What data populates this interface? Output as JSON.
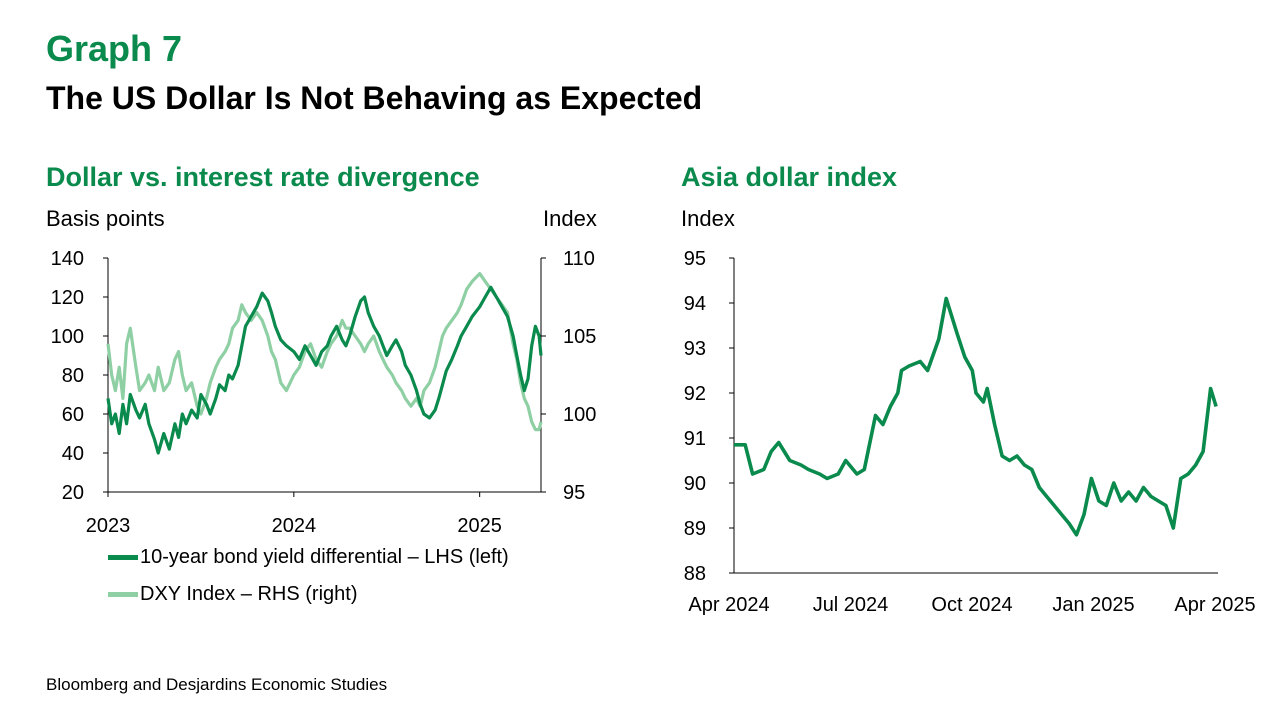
{
  "header": {
    "graph_number": "Graph 7",
    "title": "The US Dollar Is Not Behaving as Expected"
  },
  "source": "Bloomberg and Desjardins Economic Studies",
  "colors": {
    "dark_green": "#0a8a4c",
    "light_green": "#8fcfa4",
    "axis": "#000000"
  },
  "chart_data": [
    {
      "type": "line",
      "title": "Dollar vs. interest rate divergence",
      "ylabel_left": "Basis points",
      "ylabel_right": "Index",
      "x_ticks": [
        "2023",
        "2024",
        "2025"
      ],
      "x_range": [
        2023.0,
        2025.33
      ],
      "ylim_left": [
        20,
        140
      ],
      "ylim_right": [
        95,
        110
      ],
      "yticks_left": [
        20,
        40,
        60,
        80,
        100,
        120,
        140
      ],
      "yticks_right": [
        95,
        100,
        105,
        110
      ],
      "legend_position": "bottom",
      "series": [
        {
          "name": "10-year bond yield differential – LHS (left)",
          "axis": "left",
          "x": [
            2023.0,
            2023.02,
            2023.04,
            2023.06,
            2023.08,
            2023.1,
            2023.12,
            2023.15,
            2023.17,
            2023.2,
            2023.22,
            2023.25,
            2023.27,
            2023.3,
            2023.33,
            2023.36,
            2023.38,
            2023.4,
            2023.42,
            2023.45,
            2023.48,
            2023.5,
            2023.53,
            2023.55,
            2023.58,
            2023.6,
            2023.63,
            2023.65,
            2023.67,
            2023.7,
            2023.72,
            2023.74,
            2023.77,
            2023.8,
            2023.83,
            2023.86,
            2023.88,
            2023.9,
            2023.93,
            2023.96,
            2024.0,
            2024.03,
            2024.06,
            2024.09,
            2024.12,
            2024.15,
            2024.18,
            2024.2,
            2024.23,
            2024.26,
            2024.28,
            2024.3,
            2024.33,
            2024.36,
            2024.38,
            2024.4,
            2024.43,
            2024.46,
            2024.48,
            2024.5,
            2024.53,
            2024.55,
            2024.58,
            2024.6,
            2024.63,
            2024.66,
            2024.68,
            2024.7,
            2024.73,
            2024.76,
            2024.78,
            2024.8,
            2024.82,
            2024.85,
            2024.88,
            2024.9,
            2024.93,
            2024.96,
            2025.0,
            2025.03,
            2025.06,
            2025.09,
            2025.12,
            2025.15,
            2025.18,
            2025.2,
            2025.22,
            2025.24,
            2025.26,
            2025.28,
            2025.3,
            2025.32,
            2025.33
          ],
          "values": [
            68,
            55,
            60,
            50,
            65,
            55,
            70,
            62,
            58,
            65,
            55,
            47,
            40,
            50,
            42,
            55,
            48,
            60,
            55,
            62,
            58,
            70,
            65,
            60,
            68,
            75,
            72,
            80,
            78,
            85,
            95,
            105,
            110,
            115,
            122,
            118,
            112,
            105,
            98,
            95,
            92,
            88,
            95,
            90,
            85,
            92,
            95,
            100,
            105,
            98,
            95,
            100,
            110,
            118,
            120,
            112,
            105,
            100,
            95,
            90,
            95,
            98,
            92,
            85,
            80,
            72,
            65,
            60,
            58,
            62,
            68,
            75,
            82,
            88,
            95,
            100,
            105,
            110,
            115,
            120,
            125,
            120,
            115,
            110,
            100,
            90,
            80,
            72,
            78,
            95,
            105,
            100,
            90
          ]
        },
        {
          "name": "DXY Index – RHS (right)",
          "axis": "right",
          "x": [
            2023.0,
            2023.02,
            2023.04,
            2023.06,
            2023.08,
            2023.1,
            2023.12,
            2023.15,
            2023.17,
            2023.2,
            2023.22,
            2023.25,
            2023.27,
            2023.3,
            2023.33,
            2023.36,
            2023.38,
            2023.4,
            2023.42,
            2023.45,
            2023.48,
            2023.5,
            2023.53,
            2023.55,
            2023.58,
            2023.6,
            2023.63,
            2023.65,
            2023.67,
            2023.7,
            2023.72,
            2023.74,
            2023.77,
            2023.8,
            2023.83,
            2023.86,
            2023.88,
            2023.9,
            2023.93,
            2023.96,
            2024.0,
            2024.03,
            2024.06,
            2024.09,
            2024.12,
            2024.15,
            2024.18,
            2024.2,
            2024.23,
            2024.26,
            2024.28,
            2024.3,
            2024.33,
            2024.36,
            2024.38,
            2024.4,
            2024.43,
            2024.46,
            2024.48,
            2024.5,
            2024.53,
            2024.55,
            2024.58,
            2024.6,
            2024.63,
            2024.66,
            2024.68,
            2024.7,
            2024.73,
            2024.76,
            2024.78,
            2024.8,
            2024.82,
            2024.85,
            2024.88,
            2024.9,
            2024.93,
            2024.96,
            2025.0,
            2025.03,
            2025.06,
            2025.09,
            2025.12,
            2025.15,
            2025.18,
            2025.2,
            2025.22,
            2025.24,
            2025.26,
            2025.28,
            2025.3,
            2025.32,
            2025.33
          ],
          "values": [
            104.5,
            102.5,
            101.5,
            103.0,
            101.0,
            104.5,
            105.5,
            103.0,
            101.5,
            102.0,
            102.5,
            101.5,
            103.0,
            101.5,
            102.0,
            103.5,
            104.0,
            102.5,
            101.5,
            102.0,
            100.5,
            100.0,
            101.0,
            102.0,
            103.0,
            103.5,
            104.0,
            104.5,
            105.5,
            106.0,
            107.0,
            106.5,
            106.0,
            106.5,
            106.0,
            105.0,
            104.0,
            103.5,
            102.0,
            101.5,
            102.5,
            103.0,
            104.0,
            104.5,
            103.5,
            103.0,
            104.0,
            104.5,
            105.0,
            106.0,
            105.5,
            105.5,
            105.0,
            104.5,
            104.0,
            104.5,
            105.0,
            104.0,
            103.5,
            103.0,
            102.5,
            102.0,
            101.5,
            101.0,
            100.5,
            101.0,
            100.5,
            101.5,
            102.0,
            103.0,
            104.0,
            105.0,
            105.5,
            106.0,
            106.5,
            107.0,
            108.0,
            108.5,
            109.0,
            108.5,
            108.0,
            107.5,
            107.0,
            106.5,
            104.5,
            103.5,
            102.0,
            101.0,
            100.5,
            99.5,
            99.0,
            99.0,
            99.5
          ]
        }
      ]
    },
    {
      "type": "line",
      "title": "Asia dollar index",
      "ylabel": "Index",
      "x_ticks": [
        "Apr 2024",
        "Jul 2024",
        "Oct 2024",
        "Jan 2025",
        "Apr 2025"
      ],
      "x_range": [
        0,
        13
      ],
      "ylim": [
        88,
        95
      ],
      "yticks": [
        88,
        89,
        90,
        91,
        92,
        93,
        94,
        95
      ],
      "grid": false,
      "series": [
        {
          "x": [
            0.0,
            0.3,
            0.5,
            0.8,
            1.0,
            1.2,
            1.5,
            1.8,
            2.0,
            2.3,
            2.5,
            2.8,
            3.0,
            3.3,
            3.5,
            3.8,
            4.0,
            4.2,
            4.4,
            4.5,
            4.7,
            5.0,
            5.2,
            5.5,
            5.7,
            6.0,
            6.2,
            6.4,
            6.5,
            6.7,
            6.8,
            7.0,
            7.2,
            7.4,
            7.6,
            7.8,
            8.0,
            8.2,
            8.4,
            8.6,
            8.8,
            9.0,
            9.2,
            9.4,
            9.6,
            9.8,
            10.0,
            10.2,
            10.4,
            10.6,
            10.8,
            11.0,
            11.2,
            11.4,
            11.6,
            11.8,
            12.0,
            12.2,
            12.4,
            12.6,
            12.8,
            12.95
          ],
          "values": [
            90.85,
            90.85,
            90.2,
            90.3,
            90.7,
            90.9,
            90.5,
            90.4,
            90.3,
            90.2,
            90.1,
            90.2,
            90.5,
            90.2,
            90.3,
            91.5,
            91.3,
            91.7,
            92.0,
            92.5,
            92.6,
            92.7,
            92.5,
            93.2,
            94.1,
            93.3,
            92.8,
            92.5,
            92.0,
            91.8,
            92.1,
            91.3,
            90.6,
            90.5,
            90.6,
            90.4,
            90.3,
            89.9,
            89.7,
            89.5,
            89.3,
            89.1,
            88.85,
            89.3,
            90.1,
            89.6,
            89.5,
            90.0,
            89.6,
            89.8,
            89.6,
            89.9,
            89.7,
            89.6,
            89.5,
            89.0,
            90.1,
            90.2,
            90.4,
            90.7,
            92.1,
            91.7
          ]
        }
      ]
    }
  ]
}
